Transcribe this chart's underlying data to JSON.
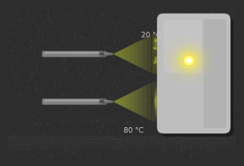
{
  "bg_color": "#2d2d2d",
  "label_20": "20 °C",
  "label_80": "80 °C",
  "label_color": "#cccccc",
  "label_fontsize": 6.5,
  "panel_color": "#c0c0c0",
  "spray_color_20": "#909830",
  "spray_color_80": "#a0aa38",
  "tube_color": "#888888",
  "tube_highlight": "#aaaaaa",
  "tube_shadow": "#555555",
  "glow_yellow": "#ffff60",
  "glow_white": "#ffffff"
}
